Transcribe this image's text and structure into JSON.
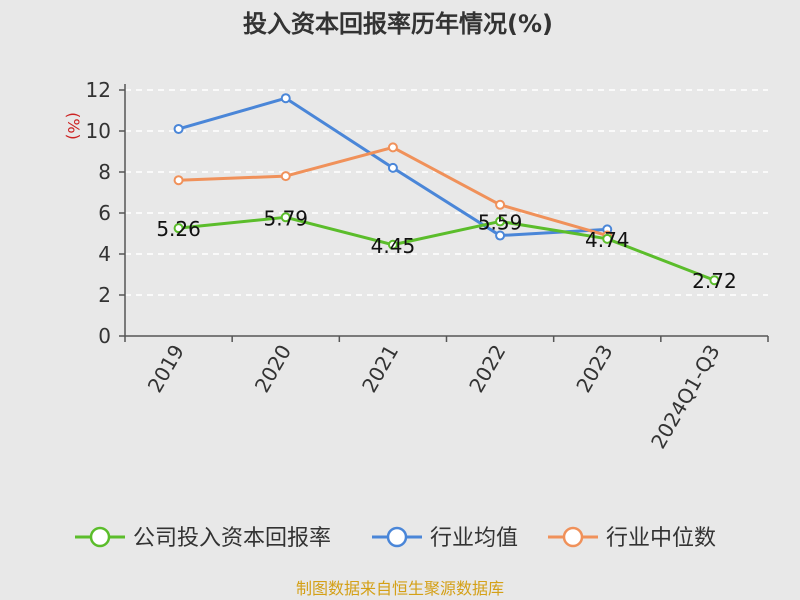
{
  "chart_data": {
    "type": "line",
    "title": "投入资本回报率历年情况(%)",
    "ylabel": "(%)",
    "ylim": [
      0,
      12
    ],
    "yticks": [
      0,
      2,
      4,
      6,
      8,
      10,
      12
    ],
    "grid": true,
    "legend_position": "bottom",
    "categories": [
      "2019",
      "2020",
      "2021",
      "2022",
      "2023",
      "2024Q1-Q3"
    ],
    "series": [
      {
        "name": "公司投入资本回报率",
        "color": "#5bbd2b",
        "values": [
          5.26,
          5.79,
          4.45,
          5.59,
          4.74,
          2.72
        ],
        "labels": [
          "5.26",
          "5.79",
          "4.45",
          "5.59",
          "4.74",
          "2.72"
        ]
      },
      {
        "name": "行业均值",
        "color": "#4a86d8",
        "values": [
          10.1,
          11.6,
          8.2,
          4.9,
          5.2,
          null
        ]
      },
      {
        "name": "行业中位数",
        "color": "#f0915a",
        "values": [
          7.6,
          7.8,
          9.2,
          6.4,
          4.9,
          null
        ]
      }
    ]
  },
  "source": "制图数据来自恒生聚源数据库"
}
